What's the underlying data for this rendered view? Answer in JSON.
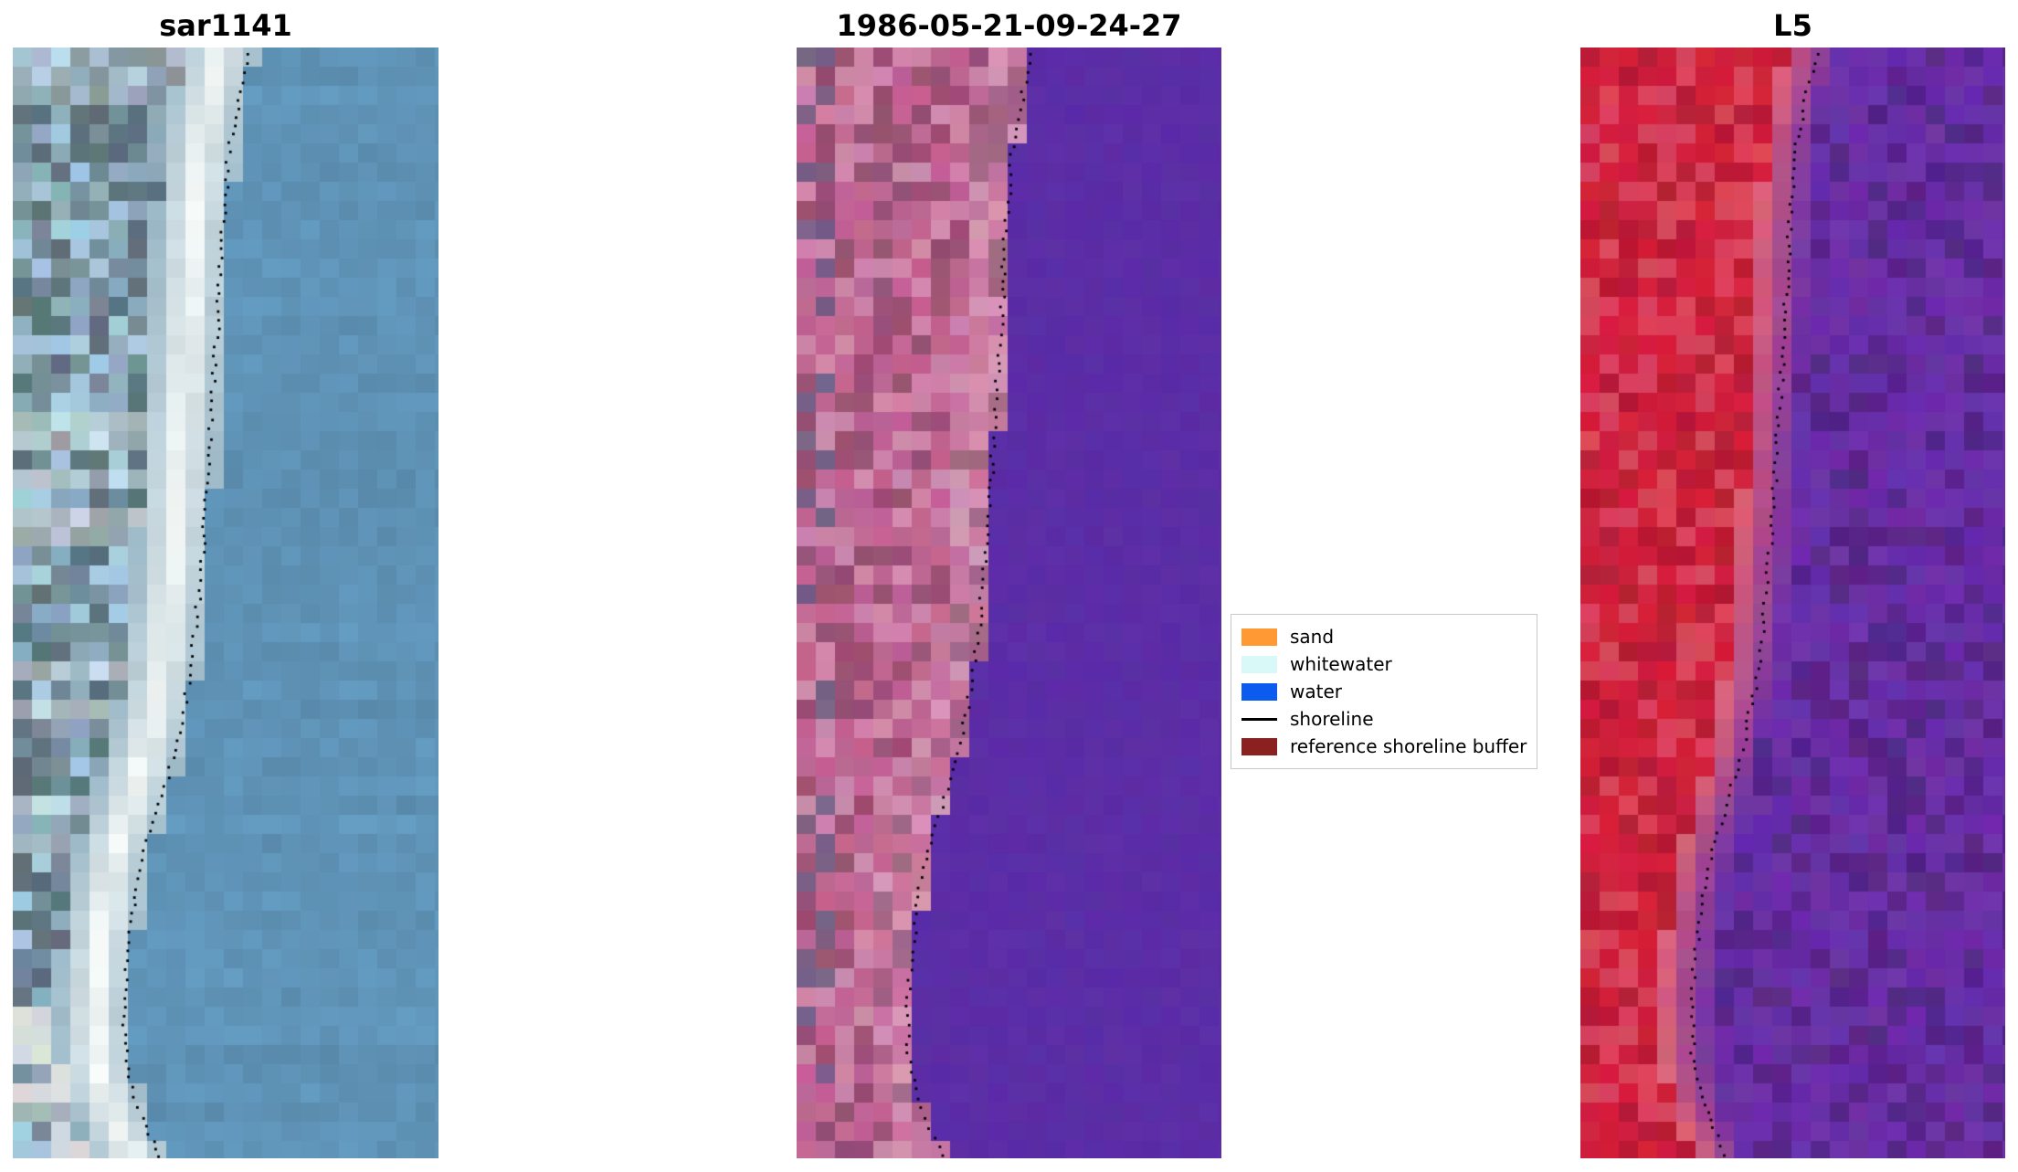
{
  "figure": {
    "background": "#ffffff"
  },
  "panels": [
    {
      "title": "sar1141",
      "kind": "rgb",
      "colors": {
        "water": "#6095b9",
        "whitewater": "#f4f8f6",
        "land": "#7e99a8"
      }
    },
    {
      "title": "1986-05-21-09-24-27",
      "kind": "classified",
      "colors": {
        "land_pink": "#c06492",
        "water_purple": "#5b2da6"
      }
    },
    {
      "title": "L5",
      "kind": "l5",
      "colors": {
        "land_red": "#d2203c",
        "water_purple": "#6a2fa8"
      }
    }
  ],
  "legend": {
    "items": [
      {
        "label": "sand",
        "swatch": "patch",
        "color": "#ff9933"
      },
      {
        "label": "whitewater",
        "swatch": "patch",
        "color": "#d9f9f9"
      },
      {
        "label": "water",
        "swatch": "patch",
        "color": "#0b5bef"
      },
      {
        "label": "shoreline",
        "swatch": "line",
        "color": "#000000"
      },
      {
        "label": "reference shoreline buffer",
        "swatch": "patch",
        "color": "#8b2020"
      }
    ]
  },
  "chart_data": {
    "type": "image",
    "panel_titles": [
      "sar1141",
      "1986-05-21-09-24-27",
      "L5"
    ],
    "legend_entries": [
      "sand",
      "whitewater",
      "water",
      "shoreline",
      "reference shoreline buffer"
    ],
    "shoreline_path_norm": [
      [
        0,
        0.555
      ],
      [
        0.04,
        0.53
      ],
      [
        0.09,
        0.505
      ],
      [
        0.16,
        0.49
      ],
      [
        0.25,
        0.478
      ],
      [
        0.34,
        0.462
      ],
      [
        0.42,
        0.45
      ],
      [
        0.5,
        0.432
      ],
      [
        0.56,
        0.415
      ],
      [
        0.62,
        0.385
      ],
      [
        0.67,
        0.35
      ],
      [
        0.71,
        0.315
      ],
      [
        0.75,
        0.29
      ],
      [
        0.8,
        0.272
      ],
      [
        0.86,
        0.258
      ],
      [
        0.91,
        0.262
      ],
      [
        0.95,
        0.285
      ],
      [
        1,
        0.345
      ]
    ]
  }
}
